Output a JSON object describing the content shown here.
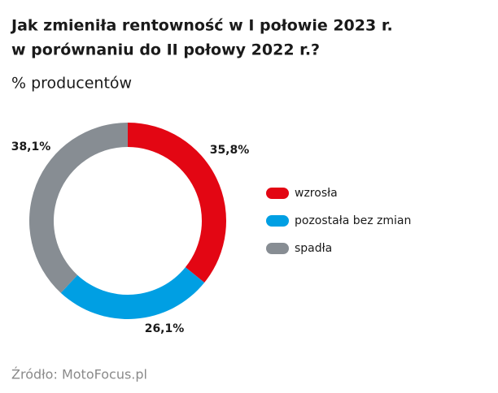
{
  "chart_data": {
    "type": "donut",
    "title": [
      "Jak zmieniła rentowność w I połowie 2023 r.",
      "w porównaniu do II połowy 2022 r.?"
    ],
    "subtitle": "% producentów",
    "categories": [
      "wzrosła",
      "pozostała bez zmian",
      "spadła"
    ],
    "values": [
      35.8,
      26.1,
      38.1
    ],
    "value_labels": [
      "35,8%",
      "26,1%",
      "38,1%"
    ],
    "colors": [
      "#e30613",
      "#009fe3",
      "#878d93"
    ],
    "source": "Źródło: MotoFocus.pl"
  }
}
